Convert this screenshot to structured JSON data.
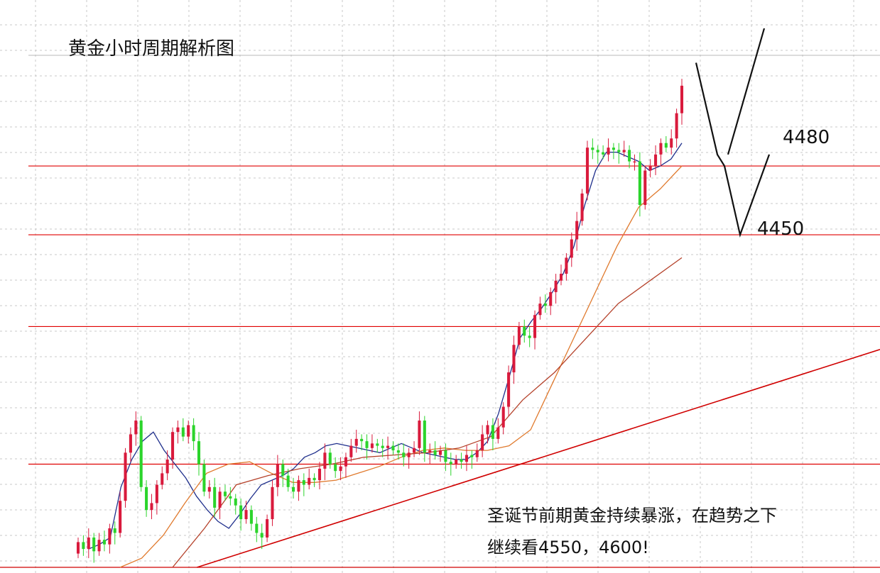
{
  "chart_data": {
    "type": "candlestick",
    "title": "黄金小时周期解析图",
    "annotation_lines": [
      "圣诞节前期黄金持续暴涨，在趋势之下",
      "继续看4550，4600!"
    ],
    "y_range": [
      4305,
      4540
    ],
    "grid": "dashed gray",
    "levels": [
      {
        "label": "4480",
        "value": 4480
      },
      {
        "label": "4450",
        "value": 4450
      },
      {
        "label": "",
        "value": 4410
      },
      {
        "label": "",
        "value": 4350
      }
    ],
    "trendline": {
      "from": [
        1,
        4305
      ],
      "to": [
        122,
        4400
      ]
    },
    "projection_zigzag": [
      4525,
      4485,
      4480,
      4450,
      4485
    ],
    "projection_up": [
      4485,
      4540
    ],
    "candles": [
      [
        4311,
        4316
      ],
      [
        4316,
        4313
      ],
      [
        4313,
        4318
      ],
      [
        4318,
        4312
      ],
      [
        4312,
        4317
      ],
      [
        4317,
        4315
      ],
      [
        4315,
        4322
      ],
      [
        4322,
        4320
      ],
      [
        4320,
        4334
      ],
      [
        4334,
        4355
      ],
      [
        4355,
        4363
      ],
      [
        4363,
        4369
      ],
      [
        4369,
        4340
      ],
      [
        4340,
        4330
      ],
      [
        4330,
        4333
      ],
      [
        4333,
        4341
      ],
      [
        4341,
        4346
      ],
      [
        4346,
        4352
      ],
      [
        4352,
        4364
      ],
      [
        4364,
        4366
      ],
      [
        4366,
        4362
      ],
      [
        4362,
        4367
      ],
      [
        4367,
        4360
      ],
      [
        4360,
        4350
      ],
      [
        4350,
        4338
      ],
      [
        4338,
        4340
      ],
      [
        4340,
        4331
      ],
      [
        4331,
        4338
      ],
      [
        4338,
        4336
      ],
      [
        4336,
        4335
      ],
      [
        4335,
        4332
      ],
      [
        4332,
        4326
      ],
      [
        4326,
        4330
      ],
      [
        4330,
        4324
      ],
      [
        4324,
        4320
      ],
      [
        4320,
        4318
      ],
      [
        4318,
        4326
      ],
      [
        4326,
        4340
      ],
      [
        4340,
        4350
      ],
      [
        4350,
        4345
      ],
      [
        4345,
        4340
      ],
      [
        4340,
        4338
      ],
      [
        4338,
        4343
      ],
      [
        4343,
        4341
      ],
      [
        4341,
        4344
      ],
      [
        4344,
        4343
      ],
      [
        4343,
        4348
      ],
      [
        4348,
        4355
      ],
      [
        4355,
        4350
      ],
      [
        4350,
        4347
      ],
      [
        4347,
        4349
      ],
      [
        4349,
        4353
      ],
      [
        4353,
        4358
      ],
      [
        4358,
        4361
      ],
      [
        4361,
        4360
      ],
      [
        4360,
        4357
      ],
      [
        4357,
        4359
      ],
      [
        4359,
        4358
      ],
      [
        4358,
        4357
      ],
      [
        4357,
        4358
      ],
      [
        4358,
        4356
      ],
      [
        4356,
        4355
      ],
      [
        4355,
        4353
      ],
      [
        4353,
        4355
      ],
      [
        4355,
        4357
      ],
      [
        4357,
        4369
      ],
      [
        4369,
        4355
      ],
      [
        4355,
        4356
      ],
      [
        4356,
        4354
      ],
      [
        4354,
        4356
      ],
      [
        4356,
        4351
      ],
      [
        4351,
        4350
      ],
      [
        4350,
        4352
      ],
      [
        4352,
        4351
      ],
      [
        4351,
        4354
      ],
      [
        4354,
        4353
      ],
      [
        4353,
        4356
      ],
      [
        4356,
        4363
      ],
      [
        4363,
        4367
      ],
      [
        4367,
        4361
      ],
      [
        4361,
        4366
      ],
      [
        4366,
        4375
      ],
      [
        4375,
        4390
      ],
      [
        4390,
        4402
      ],
      [
        4402,
        4410
      ],
      [
        4410,
        4406
      ],
      [
        4406,
        4405
      ],
      [
        4405,
        4415
      ],
      [
        4415,
        4420
      ],
      [
        4420,
        4419
      ],
      [
        4419,
        4425
      ],
      [
        4425,
        4430
      ],
      [
        4430,
        4433
      ],
      [
        4433,
        4440
      ],
      [
        4440,
        4448
      ],
      [
        4448,
        4456
      ],
      [
        4456,
        4468
      ],
      [
        4468,
        4488
      ],
      [
        4488,
        4487
      ],
      [
        4487,
        4486
      ],
      [
        4486,
        4485
      ],
      [
        4485,
        4488
      ],
      [
        4488,
        4487
      ],
      [
        4487,
        4486
      ],
      [
        4486,
        4487
      ],
      [
        4487,
        4482
      ],
      [
        4482,
        4482
      ],
      [
        4482,
        4463
      ],
      [
        4463,
        4478
      ],
      [
        4478,
        4480
      ],
      [
        4480,
        4485
      ],
      [
        4485,
        4490
      ],
      [
        4490,
        4488
      ],
      [
        4488,
        4492
      ],
      [
        4492,
        4503
      ],
      [
        4503,
        4515
      ]
    ],
    "ma_series": [
      {
        "period": "fast",
        "color": "#1f2f8c",
        "values": [
          4313,
          4315,
          4318,
          4340,
          4352,
          4360,
          4364,
          4356,
          4350,
          4344,
          4336,
          4330,
          4325,
          4322,
          4328,
          4335,
          4341,
          4343,
          4345,
          4348,
          4353,
          4355,
          4358,
          4359,
          4358,
          4357,
          4356,
          4355,
          4357,
          4359,
          4357,
          4355,
          4354,
          4353,
          4352,
          4352,
          4355,
          4360,
          4372,
          4388,
          4405,
          4412,
          4418,
          4425,
          4433,
          4445,
          4463,
          4478,
          4486,
          4486,
          4484,
          4482,
          4478,
          4480,
          4483,
          4490
        ]
      },
      {
        "period": "mid",
        "color": "#e07a2e",
        "values": [
          4305,
          4309,
          4319,
          4333,
          4346,
          4350,
          4351,
          4346,
          4342,
          4342,
          4343,
          4346,
          4349,
          4353,
          4356,
          4357,
          4356,
          4356,
          4358,
          4365,
          4385,
          4405,
          4425,
          4445,
          4462,
          4470,
          4480
        ]
      },
      {
        "period": "slow",
        "color": "#b5422b",
        "values": [
          4305,
          4322,
          4341,
          4345,
          4348,
          4350,
          4353,
          4354,
          4355,
          4357,
          4362,
          4378,
          4390,
          4405,
          4420,
          4430,
          4440
        ]
      }
    ]
  }
}
